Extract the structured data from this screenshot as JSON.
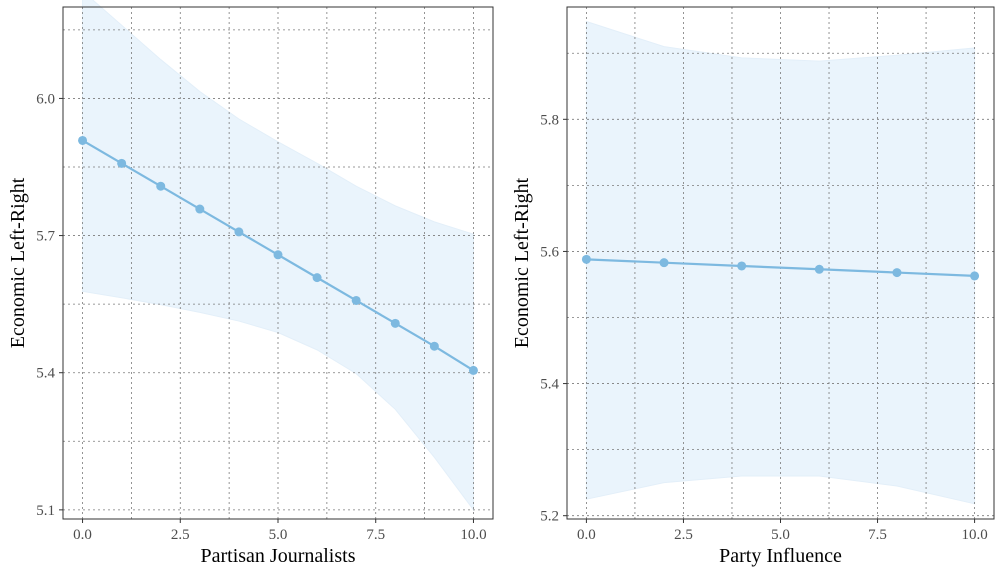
{
  "chart_data": [
    {
      "type": "line",
      "xlabel": "Partisan Journalists",
      "ylabel": "Economic Left-Right",
      "xlim": [
        -0.5,
        10.5
      ],
      "ylim": [
        5.08,
        6.2
      ],
      "x_ticks": [
        0.0,
        2.5,
        5.0,
        7.5,
        10.0
      ],
      "x_tick_labels": [
        "0.0",
        "2.5",
        "5.0",
        "7.5",
        "10.0"
      ],
      "y_ticks": [
        5.1,
        5.4,
        5.7,
        6.0
      ],
      "y_tick_labels": [
        "5.1",
        "5.4",
        "5.7",
        "6.0"
      ],
      "grid": true,
      "line_color": "#7db9e0",
      "band_color": "#eaf4fc",
      "series": [
        {
          "x": [
            0,
            1,
            2,
            3,
            4,
            5,
            6,
            7,
            8,
            9,
            10
          ],
          "y": [
            5.908,
            5.858,
            5.808,
            5.758,
            5.708,
            5.658,
            5.608,
            5.558,
            5.508,
            5.458,
            5.405
          ],
          "lower": [
            5.578,
            5.564,
            5.549,
            5.532,
            5.513,
            5.488,
            5.45,
            5.398,
            5.32,
            5.215,
            5.1
          ],
          "upper": [
            6.235,
            6.16,
            6.085,
            6.015,
            5.955,
            5.905,
            5.858,
            5.808,
            5.765,
            5.73,
            5.703
          ]
        }
      ]
    },
    {
      "type": "line",
      "xlabel": "Party Influence",
      "ylabel": "Economic Left-Right",
      "xlim": [
        -0.5,
        10.5
      ],
      "ylim": [
        5.195,
        5.97
      ],
      "x_ticks": [
        0.0,
        2.5,
        5.0,
        7.5,
        10.0
      ],
      "x_tick_labels": [
        "0.0",
        "2.5",
        "5.0",
        "7.5",
        "10.0"
      ],
      "y_ticks": [
        5.2,
        5.4,
        5.6,
        5.8
      ],
      "y_tick_labels": [
        "5.2",
        "5.4",
        "5.6",
        "5.8"
      ],
      "grid": true,
      "line_color": "#7db9e0",
      "band_color": "#eaf4fc",
      "series": [
        {
          "x": [
            0,
            2,
            4,
            6,
            8,
            10
          ],
          "y": [
            5.588,
            5.583,
            5.578,
            5.573,
            5.568,
            5.563
          ],
          "lower": [
            5.225,
            5.25,
            5.26,
            5.26,
            5.245,
            5.218
          ],
          "upper": [
            5.948,
            5.91,
            5.893,
            5.888,
            5.897,
            5.908
          ]
        }
      ]
    }
  ]
}
